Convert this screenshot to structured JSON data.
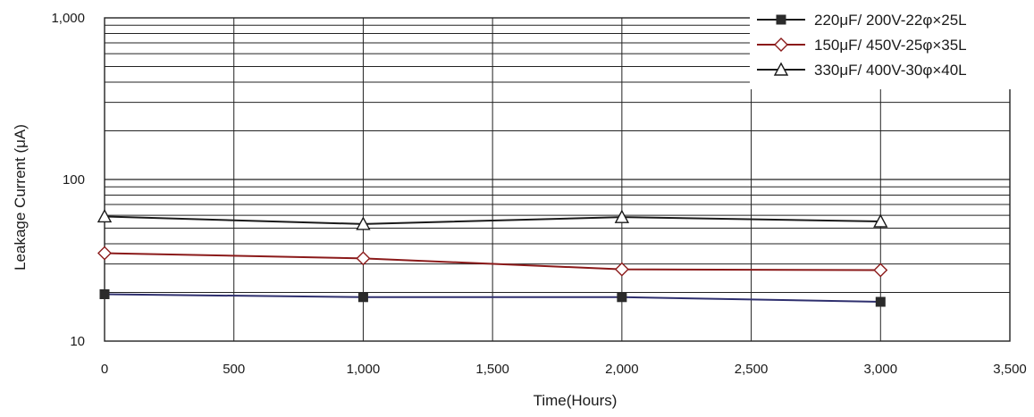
{
  "chart_data": {
    "type": "line",
    "title": "",
    "xlabel": "Time(Hours)",
    "ylabel": "Leakage Current (μA)",
    "xlim": [
      0,
      3500
    ],
    "ylim": [
      10,
      1000
    ],
    "y_scale": "log",
    "grid": true,
    "legend_position": "top-right",
    "x_ticks": [
      0,
      500,
      1000,
      1500,
      2000,
      2500,
      3000,
      3500
    ],
    "x_tick_labels": [
      "0",
      "500",
      "1,000",
      "1,500",
      "2,000",
      "2,500",
      "3,000",
      "3,500"
    ],
    "y_ticks": [
      10,
      100,
      1000
    ],
    "y_tick_labels": [
      "10",
      "100",
      "1,000"
    ],
    "x": [
      0,
      1000,
      2000,
      3000
    ],
    "series": [
      {
        "name": "220μF/ 200V-22φ×25L",
        "values": [
          19.5,
          18.7,
          18.7,
          17.5
        ],
        "color": "#2e2f6e",
        "marker": "filled-square",
        "marker_color": "#2b2b2b"
      },
      {
        "name": "150μF/ 450V-25φ×35L",
        "values": [
          35,
          32.5,
          27.8,
          27.5
        ],
        "color": "#8b1a1a",
        "marker": "open-diamond",
        "marker_color": "#8b1a1a"
      },
      {
        "name": "330μF/ 400V-30φ×40L",
        "values": [
          59,
          53,
          58.5,
          55
        ],
        "color": "#1a1a1a",
        "marker": "open-triangle",
        "marker_color": "#1a1a1a"
      }
    ]
  }
}
